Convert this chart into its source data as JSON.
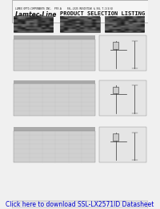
{
  "bg_color": "#d8d8d8",
  "page_bg": "#f0f0f0",
  "header_bg": "#ffffff",
  "title_top": "LUMEX OPTO-COMPONENTS INC.  PFX-A    SSL-LX25 RESISTIVE & SSL T-1(3/4)",
  "brand": "Lamtec-Line",
  "section_title": "PRODUCT SELECTION LISTING",
  "footer_text": "Click here to download SSL-LX2571ID Datasheet",
  "footer_bg": "#e8e8e8",
  "footer_fontsize": 5.5,
  "header_line_color": "#444444",
  "table_bg": "#cccccc",
  "diagram_bg": "#e8e8e8",
  "section_header_color": "#aaaaaa",
  "border_color": "#999999"
}
